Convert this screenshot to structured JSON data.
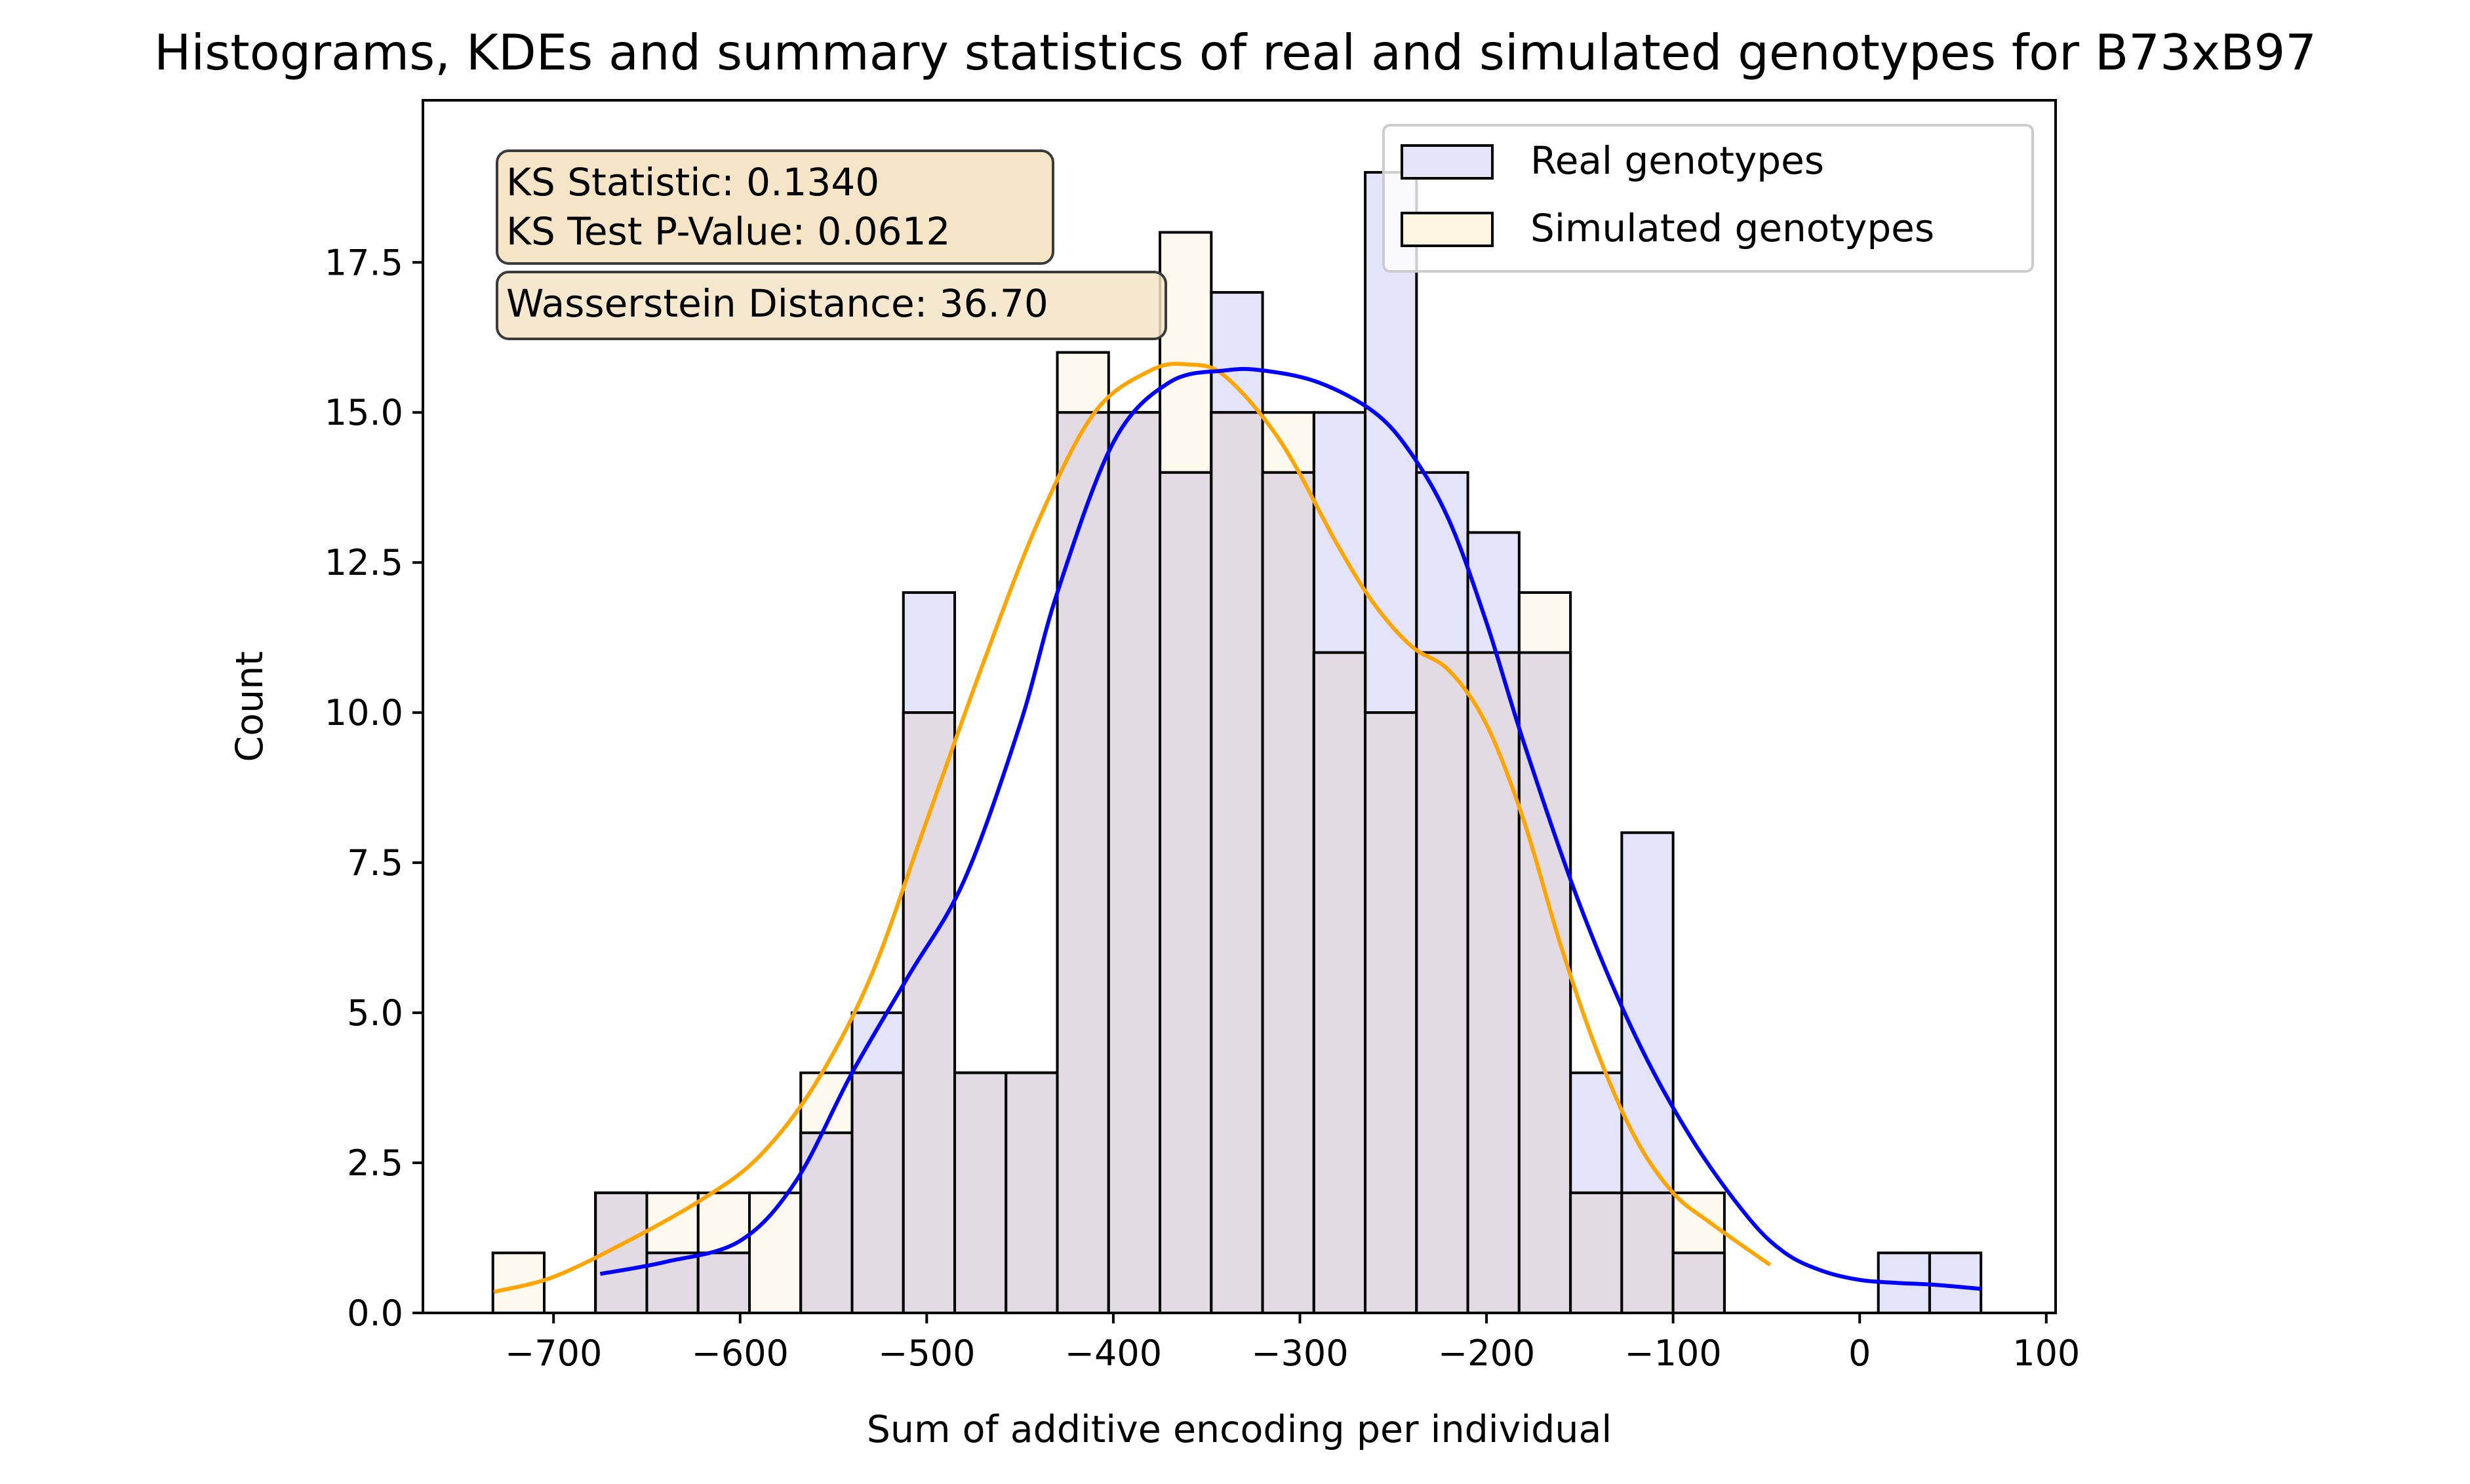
{
  "chart_data": {
    "type": "histogram",
    "title": "Histograms, KDEs and summary statistics of real and simulated genotypes for B73xB97",
    "xlabel": "Sum of additive encoding per individual",
    "ylabel": "Count",
    "xlim": [
      -770,
      105
    ],
    "ylim": [
      0,
      20.2
    ],
    "xticks": [
      -700,
      -600,
      -500,
      -400,
      -300,
      -200,
      -100,
      0,
      100
    ],
    "xtick_labels": [
      "−700",
      "−600",
      "−500",
      "−400",
      "−300",
      "−200",
      "−100",
      "0",
      "100"
    ],
    "yticks": [
      0,
      2.5,
      5,
      7.5,
      10,
      12.5,
      15,
      17.5
    ],
    "ytick_labels": [
      "0.0",
      "2.5",
      "5.0",
      "7.5",
      "10.0",
      "12.5",
      "15.0",
      "17.5"
    ],
    "bin_edges": [
      -732.5,
      -705,
      -677.5,
      -650,
      -622.5,
      -595,
      -567.5,
      -540,
      -512.5,
      -485,
      -457.5,
      -430,
      -402.5,
      -375,
      -347.5,
      -320,
      -292.5,
      -265,
      -237.5,
      -210,
      -182.5,
      -155,
      -127.5,
      -100,
      -72.5,
      -45,
      -17.5,
      10,
      37.5,
      65
    ],
    "series": [
      {
        "name": "Real genotypes",
        "fill": "#e3e3f9",
        "kde_color": "#0000ff",
        "counts": [
          0,
          0,
          2,
          1,
          1,
          0,
          3,
          5,
          12,
          4,
          4,
          15,
          15,
          14,
          17,
          14,
          15,
          19,
          14,
          13,
          11,
          4,
          8,
          1,
          0,
          0,
          0,
          1,
          1
        ],
        "kde": {
          "x": [
            -675,
            -640,
            -600,
            -570,
            -540,
            -510,
            -480,
            -450,
            -430,
            -400,
            -370,
            -340,
            -320,
            -290,
            -260,
            -240,
            -220,
            -200,
            -180,
            -150,
            -120,
            -90,
            -60,
            -40,
            -20,
            0,
            20,
            40,
            65
          ],
          "y": [
            0.65,
            0.85,
            1.2,
            2.2,
            4.0,
            5.6,
            7.2,
            9.8,
            12.0,
            14.5,
            15.5,
            15.7,
            15.7,
            15.5,
            15.0,
            14.3,
            13.2,
            11.5,
            9.5,
            6.8,
            4.6,
            2.9,
            1.6,
            1.0,
            0.7,
            0.55,
            0.5,
            0.47,
            0.4
          ]
        }
      },
      {
        "name": "Simulated genotypes",
        "fill": "#fdf4e1",
        "kde_color": "#ffa500",
        "counts": [
          1,
          0,
          2,
          2,
          2,
          2,
          4,
          4,
          10,
          4,
          4,
          16,
          15,
          18,
          15,
          15,
          11,
          10,
          11,
          11,
          12,
          2,
          2,
          2,
          0,
          0,
          0,
          0,
          0
        ],
        "kde": {
          "x": [
            -732,
            -700,
            -660,
            -620,
            -590,
            -560,
            -530,
            -500,
            -470,
            -440,
            -410,
            -380,
            -360,
            -340,
            -310,
            -280,
            -260,
            -240,
            -220,
            -200,
            -180,
            -160,
            -140,
            -120,
            -100,
            -80,
            -48
          ],
          "y": [
            0.35,
            0.6,
            1.2,
            1.9,
            2.6,
            3.8,
            5.6,
            8.2,
            10.8,
            13.2,
            15.0,
            15.7,
            15.8,
            15.6,
            14.5,
            12.8,
            11.8,
            11.1,
            10.7,
            9.8,
            8.2,
            6.1,
            4.3,
            2.9,
            2.0,
            1.5,
            0.8
          ]
        }
      }
    ],
    "overlap_fill": "#e2dbe3",
    "legend_position": "top-right",
    "stats": {
      "ks_statistic": "KS Statistic: 0.1340",
      "ks_pvalue": "KS Test P-Value: 0.0612",
      "wasserstein": "Wasserstein Distance: 36.70",
      "box_color": "#f5e4c6"
    }
  }
}
